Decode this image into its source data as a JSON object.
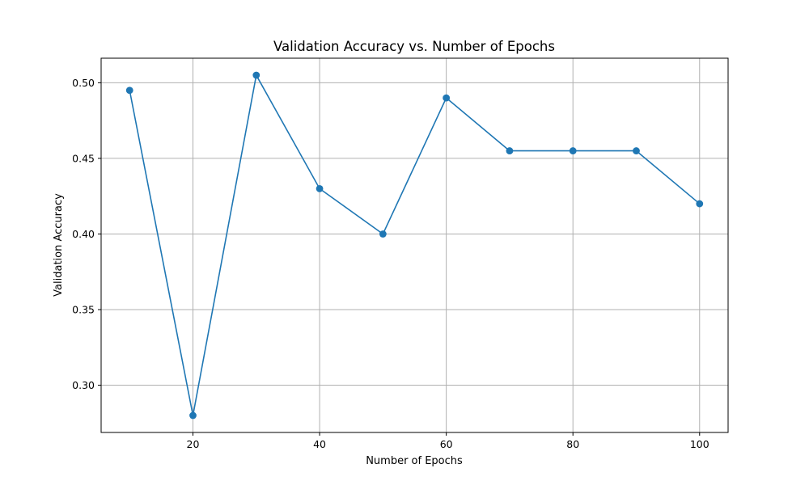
{
  "chart_data": {
    "type": "line",
    "title": "Validation Accuracy vs. Number of Epochs",
    "xlabel": "Number of Epochs",
    "ylabel": "Validation Accuracy",
    "x": [
      10,
      20,
      30,
      40,
      50,
      60,
      70,
      80,
      90,
      100
    ],
    "series": [
      {
        "values": [
          0.495,
          0.28,
          0.505,
          0.43,
          0.4,
          0.49,
          0.455,
          0.455,
          0.455,
          0.42
        ],
        "color": "#1f77b4",
        "marker": "circle"
      }
    ],
    "xlim": [
      5.5,
      104.5
    ],
    "ylim": [
      0.26875,
      0.51625
    ],
    "xticks": [
      20,
      40,
      60,
      80,
      100
    ],
    "xtick_labels": [
      "20",
      "40",
      "60",
      "80",
      "100"
    ],
    "yticks": [
      0.3,
      0.35,
      0.4,
      0.45,
      0.5
    ],
    "ytick_labels": [
      "0.30",
      "0.35",
      "0.40",
      "0.45",
      "0.50"
    ],
    "grid": true
  }
}
